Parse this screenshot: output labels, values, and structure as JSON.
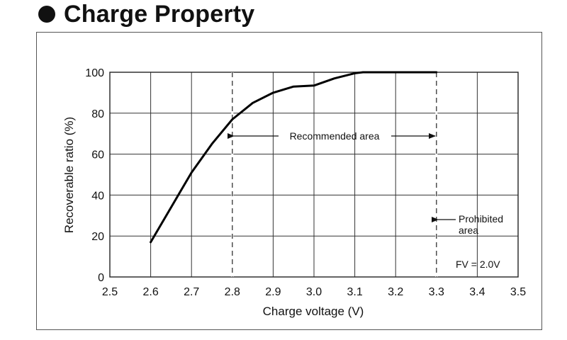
{
  "heading": {
    "title": "Charge Property"
  },
  "chart_data": {
    "type": "line",
    "title": "Charge Property",
    "xlabel": "Charge voltage (V)",
    "ylabel": "Recoverable ratio (%)",
    "xlim": [
      2.5,
      3.5
    ],
    "ylim": [
      0,
      100
    ],
    "x_ticks": [
      2.5,
      2.6,
      2.7,
      2.8,
      2.9,
      3.0,
      3.1,
      3.2,
      3.3,
      3.4,
      3.5
    ],
    "x_tick_labels": [
      "2.5",
      "2.6",
      "2.7",
      "2.8",
      "2.9",
      "3.0",
      "3.1",
      "3.2",
      "3.3",
      "3.4",
      "3.5"
    ],
    "y_ticks": [
      0,
      20,
      40,
      60,
      80,
      100
    ],
    "y_tick_labels": [
      "0",
      "20",
      "40",
      "60",
      "80",
      "100"
    ],
    "grid": true,
    "series": [
      {
        "x": [
          2.6,
          2.65,
          2.7,
          2.75,
          2.8,
          2.85,
          2.9,
          2.95,
          3.0,
          3.05,
          3.1,
          3.12,
          3.2,
          3.3
        ],
        "y": [
          17,
          34,
          51,
          65,
          77,
          85,
          90,
          93,
          93.5,
          97,
          99.5,
          100,
          100,
          100
        ]
      }
    ],
    "boundaries": [
      2.8,
      3.3
    ],
    "annotations": {
      "recommended": "Recommended area",
      "prohibited_line1": "Prohibited",
      "prohibited_line2": "area",
      "fv": "FV = 2.0V"
    },
    "colors": {
      "line": "#000000",
      "grid": "#333333"
    }
  }
}
